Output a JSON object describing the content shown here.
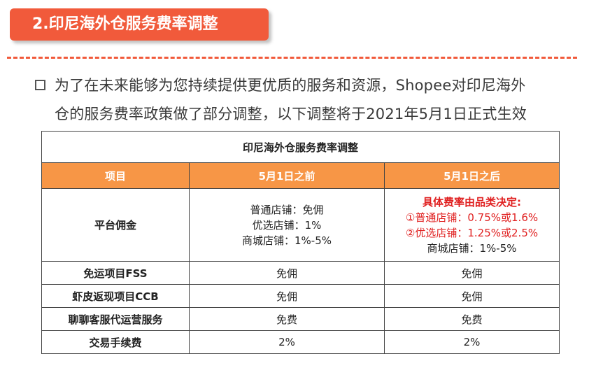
{
  "section": {
    "title": "2.印尼海外仓服务费率调整"
  },
  "intro": {
    "line1": "为了在未来能够为您持续提供更优质的服务和资源，Shopee对印尼海外",
    "line2": "仓的服务费率政策做了部分调整，以下调整将于2021年5月1日正式生效"
  },
  "table": {
    "caption": "印尼海外仓服务费率调整",
    "headers": [
      "项目",
      "5月1日之前",
      "5月1日之后"
    ],
    "platform_row": {
      "label": "平台佣金",
      "before": [
        "普通店铺：免佣",
        "优选店铺：1%",
        "商城店铺：1%-5%"
      ],
      "after_heading": "具体费率由品类决定:",
      "after": [
        "①普通店铺：0.75%或1.6%",
        "②优选店铺：1.25%或2.5%",
        "商城店铺：1%-5%"
      ]
    },
    "rows": [
      {
        "label": "免运项目FSS",
        "before": "免佣",
        "after": "免佣"
      },
      {
        "label": "虾皮返现项目CCB",
        "before": "免佣",
        "after": "免佣"
      },
      {
        "label": "聊聊客服代运营服务",
        "before": "免费",
        "after": "免费"
      },
      {
        "label": "交易手续费",
        "before": "2%",
        "after": "2%"
      }
    ]
  },
  "colors": {
    "accent": "#f15a3b",
    "header_bg": "#f79646",
    "highlight_text": "#e02020"
  },
  "icons": {
    "bullet": "square-bullet-icon"
  }
}
